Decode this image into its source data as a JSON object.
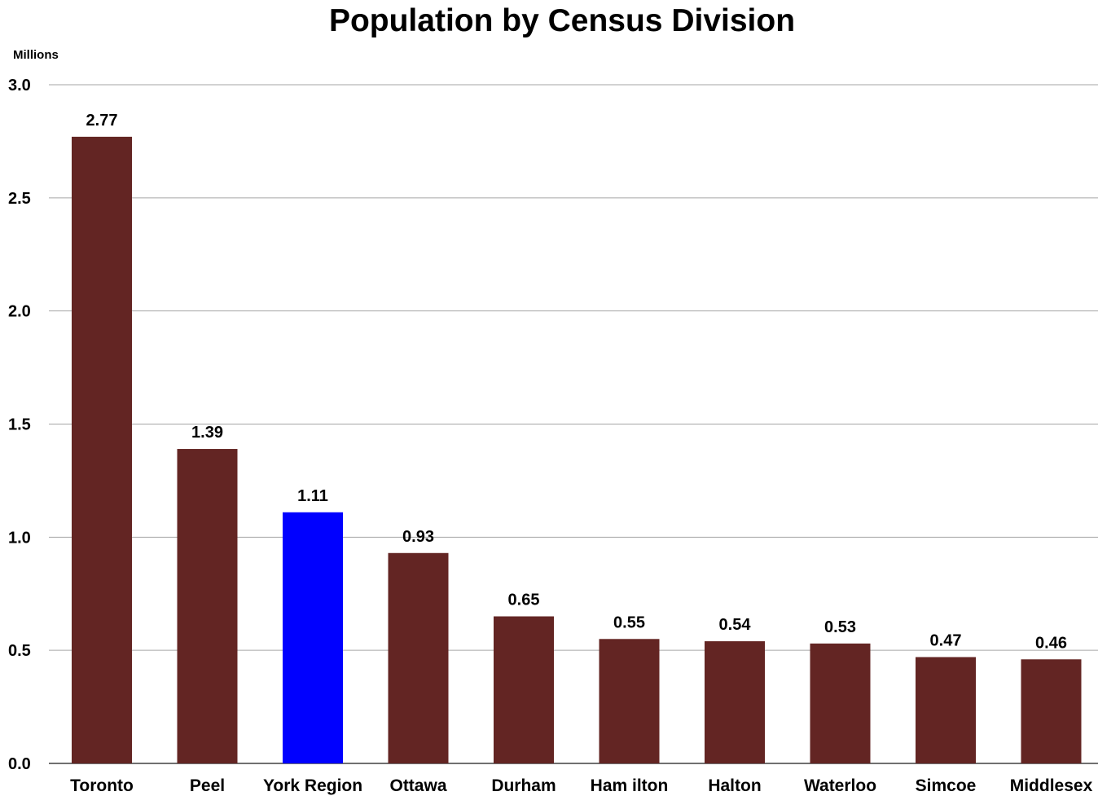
{
  "chart_data": {
    "type": "bar",
    "title": "Population by Census Division",
    "ylabel": "Millions",
    "xlabel": "",
    "ylim": [
      0,
      3.0
    ],
    "yticks": [
      0.0,
      0.5,
      1.0,
      1.5,
      2.0,
      2.5,
      3.0
    ],
    "ytick_labels": [
      "0.0",
      "0.5",
      "1.0",
      "1.5",
      "2.0",
      "2.5",
      "3.0"
    ],
    "grid": true,
    "legend": "none",
    "categories": [
      "Toronto",
      "Peel",
      "York Region",
      "Ottawa",
      "Durham",
      "Ham ilton",
      "Halton",
      "Waterloo",
      "Simcoe",
      "Middlesex"
    ],
    "values": [
      2.77,
      1.39,
      1.11,
      0.93,
      0.65,
      0.55,
      0.54,
      0.53,
      0.47,
      0.46
    ],
    "value_labels": [
      "2.77",
      "1.39",
      "1.11",
      "0.93",
      "0.65",
      "0.55",
      "0.54",
      "0.53",
      "0.47",
      "0.46"
    ],
    "colors": {
      "default_bar": "#632523",
      "highlight_bar": "#0000ff",
      "gridline": "#a6a6a6"
    },
    "highlight_category": "York Region"
  }
}
